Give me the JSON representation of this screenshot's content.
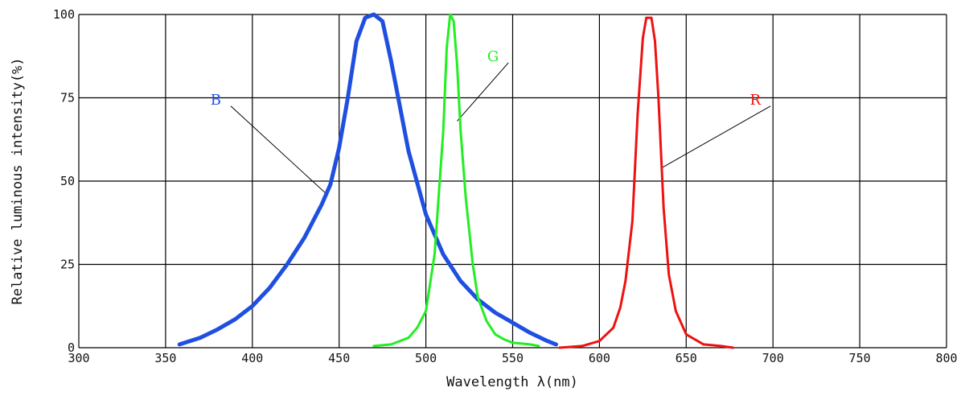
{
  "chart_data": {
    "type": "line",
    "title": "",
    "xlabel": "Wavelength λ(nm)",
    "ylabel": "Relative luminous intensity(%)",
    "xlim": [
      300,
      800
    ],
    "ylim": [
      0,
      100
    ],
    "x_ticks": [
      "300",
      "350",
      "400",
      "450",
      "500",
      "550",
      "600",
      "650",
      "700",
      "750",
      "800"
    ],
    "y_ticks": [
      "0",
      "25",
      "50",
      "75",
      "100"
    ],
    "grid": true,
    "series": [
      {
        "name": "B",
        "color": "#1f4fe0",
        "label_at": [
          382,
          73
        ],
        "points": [
          [
            358,
            1
          ],
          [
            370,
            3
          ],
          [
            380,
            5.5
          ],
          [
            390,
            8.5
          ],
          [
            400,
            12.5
          ],
          [
            410,
            18
          ],
          [
            420,
            25
          ],
          [
            430,
            33
          ],
          [
            440,
            43
          ],
          [
            445,
            49
          ],
          [
            450,
            60
          ],
          [
            455,
            75
          ],
          [
            460,
            92
          ],
          [
            465,
            99
          ],
          [
            470,
            100
          ],
          [
            475,
            98
          ],
          [
            480,
            86
          ],
          [
            490,
            59
          ],
          [
            500,
            40
          ],
          [
            510,
            28
          ],
          [
            520,
            20
          ],
          [
            530,
            14.5
          ],
          [
            540,
            10.5
          ],
          [
            550,
            7.5
          ],
          [
            560,
            4.5
          ],
          [
            570,
            2
          ],
          [
            575,
            1
          ]
        ]
      },
      {
        "name": "G",
        "color": "#22ee22",
        "label_at": [
          542,
          86
        ],
        "points": [
          [
            470,
            0.5
          ],
          [
            480,
            1
          ],
          [
            490,
            3
          ],
          [
            495,
            6
          ],
          [
            500,
            11
          ],
          [
            505,
            28
          ],
          [
            510,
            65
          ],
          [
            512,
            90
          ],
          [
            514,
            100
          ],
          [
            516,
            98
          ],
          [
            518,
            85
          ],
          [
            520,
            65
          ],
          [
            523,
            45
          ],
          [
            527,
            25
          ],
          [
            530,
            15
          ],
          [
            535,
            8
          ],
          [
            540,
            4
          ],
          [
            545,
            2.5
          ],
          [
            550,
            1.5
          ],
          [
            560,
            1
          ],
          [
            565,
            0.5
          ]
        ]
      },
      {
        "name": "R",
        "color": "#ee1111",
        "label_at": [
          693,
          73
        ],
        "points": [
          [
            577,
            0
          ],
          [
            590,
            0.5
          ],
          [
            600,
            2
          ],
          [
            608,
            6
          ],
          [
            612,
            12
          ],
          [
            615,
            20
          ],
          [
            619,
            38
          ],
          [
            622,
            70
          ],
          [
            625,
            93
          ],
          [
            627,
            99
          ],
          [
            630,
            99
          ],
          [
            632,
            92
          ],
          [
            634,
            75
          ],
          [
            637,
            42
          ],
          [
            640,
            22
          ],
          [
            644,
            11
          ],
          [
            650,
            4
          ],
          [
            660,
            1
          ],
          [
            670,
            0.5
          ],
          [
            677,
            0
          ]
        ]
      }
    ]
  }
}
